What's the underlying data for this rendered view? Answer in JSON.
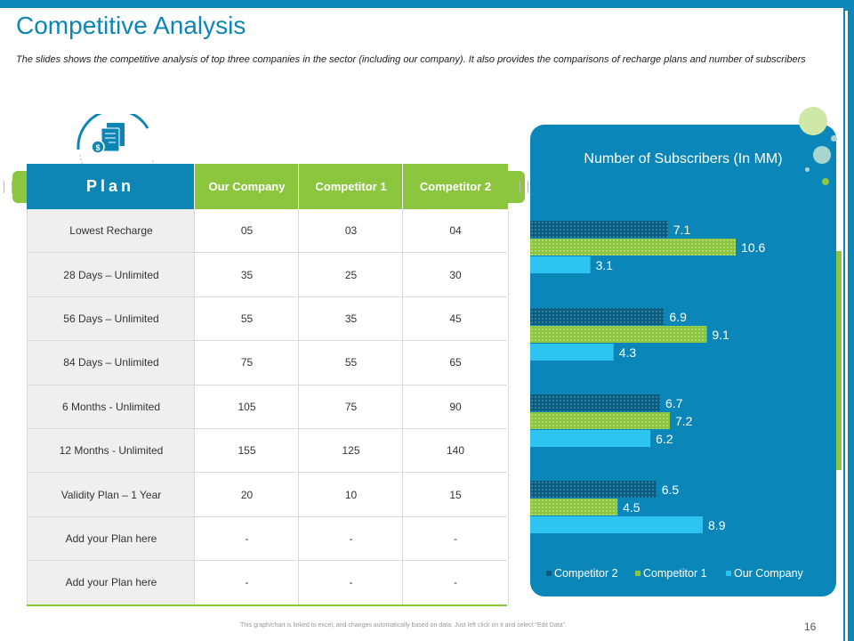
{
  "slide": {
    "title": "Competitive Analysis",
    "subtitle": "The slides shows the competitive analysis of top three companies in the sector (including our company). It also provides the comparisons of recharge plans and number of subscribers",
    "footer_note": "This graph/chart is linked to excel, and changes automatically based on data. Just left click on it and select “Edit Data”.",
    "page_number": "16"
  },
  "table": {
    "headers": [
      "Plan",
      "Our Company",
      "Competitor 1",
      "Competitor 2"
    ],
    "rows": [
      [
        "Lowest Recharge",
        "05",
        "03",
        "04"
      ],
      [
        "28 Days – Unlimited",
        "35",
        "25",
        "30"
      ],
      [
        "56 Days – Unlimited",
        "55",
        "35",
        "45"
      ],
      [
        "84 Days – Unlimited",
        "75",
        "55",
        "65"
      ],
      [
        "6 Months - Unlimited",
        "105",
        "75",
        "90"
      ],
      [
        "12 Months - Unlimited",
        "155",
        "125",
        "140"
      ],
      [
        "Validity Plan – 1 Year",
        "20",
        "10",
        "15"
      ],
      [
        "Add your Plan here",
        "-",
        "-",
        "-"
      ],
      [
        "Add your Plan here",
        "-",
        "-",
        "-"
      ]
    ]
  },
  "chart_data": {
    "type": "bar",
    "orientation": "horizontal",
    "title": "Number of Subscribers (In MM)",
    "xlim": [
      0,
      12
    ],
    "groups": 4,
    "series": [
      {
        "name": "Competitor 2",
        "color": "#0b5c7f",
        "pattern": "dotted",
        "values": [
          7.1,
          6.9,
          6.7,
          6.5
        ]
      },
      {
        "name": "Competitor 1",
        "color": "#8cc63f",
        "pattern": "dotted",
        "values": [
          10.6,
          9.1,
          7.2,
          4.5
        ]
      },
      {
        "name": "Our Company",
        "color": "#2ec4f2",
        "pattern": "solid",
        "values": [
          3.1,
          4.3,
          6.2,
          8.9
        ]
      }
    ],
    "legend": [
      "Competitor 2",
      "Competitor 1",
      "Our Company"
    ],
    "legend_position": "bottom"
  },
  "icons": {
    "plan_icon": "document-dollar-icon"
  }
}
